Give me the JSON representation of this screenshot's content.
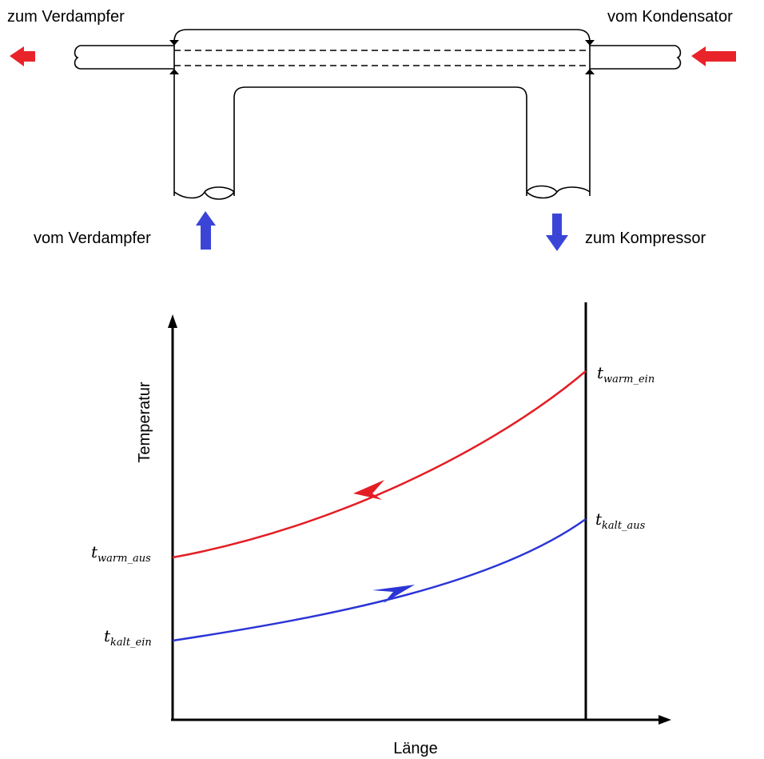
{
  "top_diagram": {
    "label_to_evaporator_top": "zum Verdampfer",
    "label_from_condenser": "vom Kondensator",
    "label_from_evaporator": "vom Verdampfer",
    "label_to_compressor": "zum Kompressor",
    "hot_arrow_color": "#e8242a",
    "cold_arrow_color": "#3a45d8"
  },
  "chart": {
    "ylabel": "Temperatur",
    "xlabel": "Länge",
    "warm_out": {
      "base": "t",
      "sub": "warm_aus"
    },
    "warm_in": {
      "base": "t",
      "sub": "warm_ein"
    },
    "cold_in": {
      "base": "t",
      "sub": "kalt_ein"
    },
    "cold_out": {
      "base": "t",
      "sub": "kalt_aus"
    },
    "warm_color": "#e31e24",
    "cold_color": "#2b35d6"
  }
}
